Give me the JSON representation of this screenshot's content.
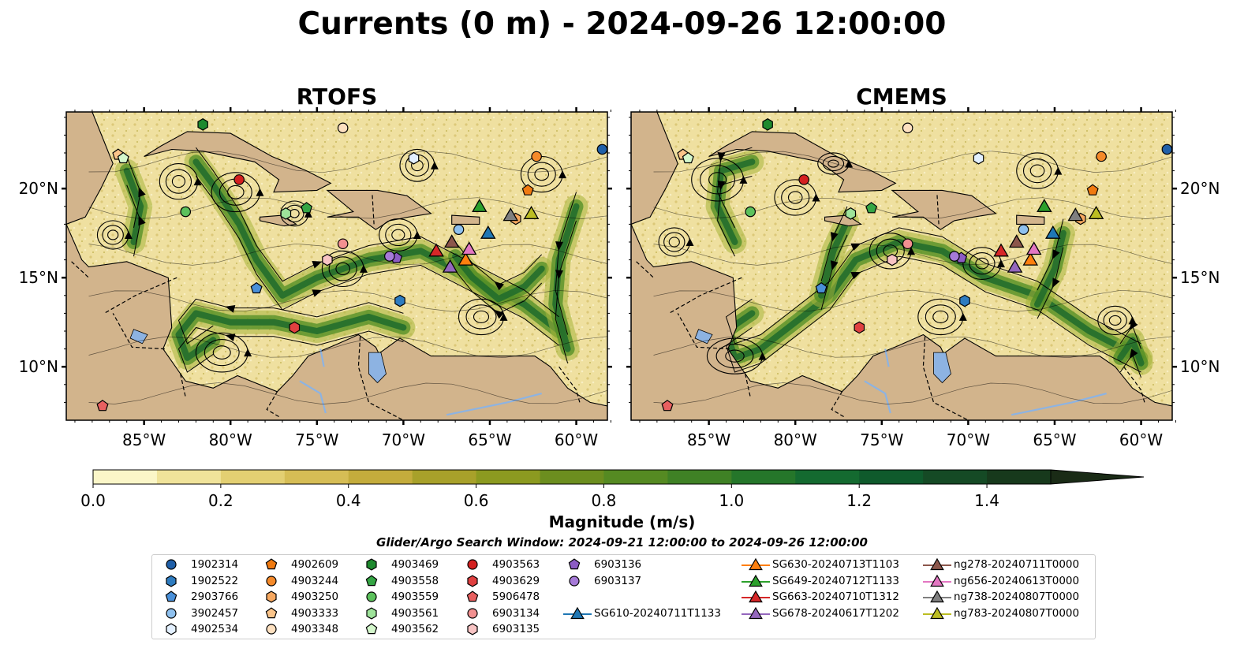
{
  "title": "Currents (0 m) - 2024-09-26 12:00:00",
  "panels": [
    {
      "title": "RTOFS"
    },
    {
      "title": "CMEMS"
    }
  ],
  "axes": {
    "lon_ticks": [
      "85°W",
      "80°W",
      "75°W",
      "70°W",
      "65°W",
      "60°W"
    ],
    "lat_ticks": [
      "20°N",
      "15°N",
      "10°N"
    ],
    "lon_range": [
      -89.5,
      -58.2
    ],
    "lat_range": [
      7.0,
      24.3
    ]
  },
  "colorbar": {
    "label": "Magnitude (m/s)",
    "ticks": [
      "0.0",
      "0.2",
      "0.4",
      "0.6",
      "0.8",
      "1.0",
      "1.2",
      "1.4"
    ],
    "range": [
      0,
      1.5
    ],
    "colors": [
      "#fbf6c8",
      "#f0e39a",
      "#e3cf72",
      "#d6bd55",
      "#c4ac3c",
      "#a8a12a",
      "#8c9a20",
      "#6c8e1f",
      "#558a22",
      "#3f8125",
      "#25762a",
      "#146a30",
      "#0f5a2c",
      "#154a25",
      "#17391c",
      "#1a2b16"
    ]
  },
  "search_window": "Glider/Argo Search Window: 2024-09-21 12:00:00 to 2024-09-26 12:00:00",
  "legend": {
    "argo": [
      {
        "label": "1902314",
        "marker": "circle",
        "color": "#1f5fa8"
      },
      {
        "label": "1902522",
        "marker": "hexagon",
        "color": "#2e7cc0"
      },
      {
        "label": "2903766",
        "marker": "pentagon",
        "color": "#4a90d9"
      },
      {
        "label": "3902457",
        "marker": "circle",
        "color": "#8fc1ef"
      },
      {
        "label": "4902534",
        "marker": "hexagon",
        "color": "#e3f0ff"
      },
      {
        "label": "4902609",
        "marker": "pentagon",
        "color": "#f07a10"
      },
      {
        "label": "4903244",
        "marker": "circle",
        "color": "#f58a2a"
      },
      {
        "label": "4903250",
        "marker": "hexagon",
        "color": "#f7a860"
      },
      {
        "label": "4903333",
        "marker": "pentagon",
        "color": "#fac48a"
      },
      {
        "label": "4903348",
        "marker": "circle",
        "color": "#fde0c0"
      },
      {
        "label": "4903469",
        "marker": "hexagon",
        "color": "#1e8a2e"
      },
      {
        "label": "4903558",
        "marker": "pentagon",
        "color": "#34a544"
      },
      {
        "label": "4903559",
        "marker": "circle",
        "color": "#5cc15c"
      },
      {
        "label": "4903561",
        "marker": "hexagon",
        "color": "#9ee39a"
      },
      {
        "label": "4903562",
        "marker": "pentagon",
        "color": "#d4f7cc"
      },
      {
        "label": "4903563",
        "marker": "circle",
        "color": "#d42020"
      },
      {
        "label": "4903629",
        "marker": "hexagon",
        "color": "#e04040"
      },
      {
        "label": "5906478",
        "marker": "pentagon",
        "color": "#e86060"
      },
      {
        "label": "6903134",
        "marker": "circle",
        "color": "#f29090"
      },
      {
        "label": "6903135",
        "marker": "hexagon",
        "color": "#f8c4c4"
      },
      {
        "label": "6903136",
        "marker": "pentagon",
        "color": "#8c5cc4"
      },
      {
        "label": "6903137",
        "marker": "circle",
        "color": "#a67ad8"
      }
    ],
    "gliders": [
      {
        "label": "SG610-20240711T1133",
        "color": "#1f77b4"
      },
      {
        "label": "SG630-20240713T1103",
        "color": "#ff7f0e"
      },
      {
        "label": "SG649-20240712T1133",
        "color": "#2ca02c"
      },
      {
        "label": "SG663-20240710T1312",
        "color": "#d62728"
      },
      {
        "label": "SG678-20240617T1202",
        "color": "#9467bd"
      },
      {
        "label": "ng278-20240711T0000",
        "color": "#8c564b"
      },
      {
        "label": "ng656-20240613T0000",
        "color": "#e377c2"
      },
      {
        "label": "ng738-20240807T0000",
        "color": "#7f7f7f"
      },
      {
        "label": "ng783-20240807T0000",
        "color": "#bcbd22"
      }
    ]
  }
}
